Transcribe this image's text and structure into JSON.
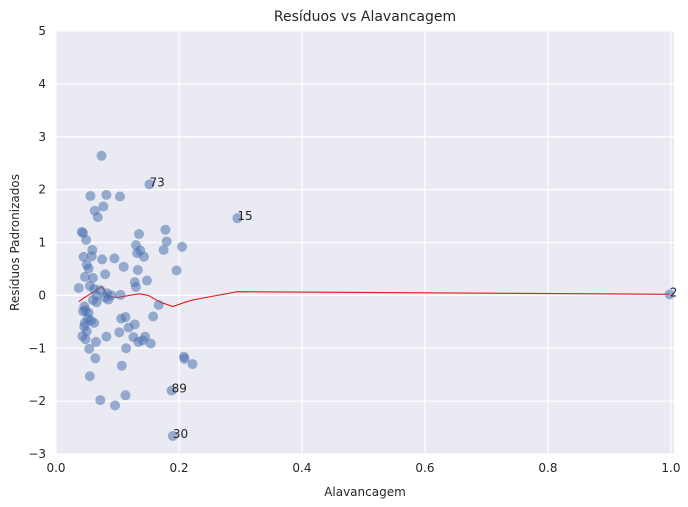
{
  "chart_data": {
    "type": "scatter",
    "title": "Resíduos vs Alavancagem",
    "xlabel": "Alavancagem",
    "ylabel": "Resíduos Padronizados",
    "xlim": [
      0.0,
      1.005
    ],
    "ylim": [
      -3,
      5
    ],
    "xticks": [
      0.0,
      0.2,
      0.4,
      0.6,
      0.8,
      1.0
    ],
    "xtick_labels": [
      "0.0",
      "0.2",
      "0.4",
      "0.6",
      "0.8",
      "1.0"
    ],
    "yticks": [
      -3,
      -2,
      -1,
      0,
      1,
      2,
      3,
      4,
      5
    ],
    "ytick_labels": [
      "−3",
      "−2",
      "−1",
      "0",
      "1",
      "2",
      "3",
      "4",
      "5"
    ],
    "grid": true,
    "point_color": "#4c72b0",
    "line_color": "#e41a1c",
    "points": [
      [
        0.074,
        2.64
      ],
      [
        0.056,
        1.88
      ],
      [
        0.082,
        1.9
      ],
      [
        0.104,
        1.87
      ],
      [
        0.152,
        2.1
      ],
      [
        0.063,
        1.6
      ],
      [
        0.068,
        1.48
      ],
      [
        0.077,
        1.68
      ],
      [
        0.295,
        1.46
      ],
      [
        0.042,
        1.2
      ],
      [
        0.044,
        1.18
      ],
      [
        0.049,
        1.05
      ],
      [
        0.178,
        1.24
      ],
      [
        0.135,
        1.16
      ],
      [
        0.13,
        0.95
      ],
      [
        0.059,
        0.86
      ],
      [
        0.045,
        0.73
      ],
      [
        0.058,
        0.74
      ],
      [
        0.075,
        0.68
      ],
      [
        0.095,
        0.7
      ],
      [
        0.132,
        0.8
      ],
      [
        0.137,
        0.85
      ],
      [
        0.143,
        0.73
      ],
      [
        0.175,
        0.86
      ],
      [
        0.18,
        1.02
      ],
      [
        0.205,
        0.92
      ],
      [
        0.05,
        0.58
      ],
      [
        0.053,
        0.51
      ],
      [
        0.11,
        0.54
      ],
      [
        0.133,
        0.48
      ],
      [
        0.196,
        0.47
      ],
      [
        0.047,
        0.35
      ],
      [
        0.08,
        0.4
      ],
      [
        0.06,
        0.33
      ],
      [
        0.055,
        0.18
      ],
      [
        0.062,
        0.12
      ],
      [
        0.13,
        0.16
      ],
      [
        0.128,
        0.25
      ],
      [
        0.148,
        0.28
      ],
      [
        0.037,
        0.14
      ],
      [
        0.072,
        0.1
      ],
      [
        0.083,
        0.04
      ],
      [
        0.09,
        0.0
      ],
      [
        0.105,
        0.01
      ],
      [
        0.066,
        0.0
      ],
      [
        0.06,
        -0.09
      ],
      [
        0.085,
        -0.08
      ],
      [
        0.08,
        -0.04
      ],
      [
        0.066,
        -0.13
      ],
      [
        0.046,
        -0.21
      ],
      [
        0.048,
        -0.28
      ],
      [
        0.053,
        -0.33
      ],
      [
        0.044,
        -0.3
      ],
      [
        0.167,
        -0.18
      ],
      [
        0.057,
        -0.48
      ],
      [
        0.047,
        -0.52
      ],
      [
        0.062,
        -0.52
      ],
      [
        0.052,
        -0.44
      ],
      [
        0.106,
        -0.44
      ],
      [
        0.113,
        -0.41
      ],
      [
        0.128,
        -0.55
      ],
      [
        0.118,
        -0.61
      ],
      [
        0.046,
        -0.59
      ],
      [
        0.158,
        -0.4
      ],
      [
        0.05,
        -0.68
      ],
      [
        0.103,
        -0.7
      ],
      [
        0.082,
        -0.78
      ],
      [
        0.043,
        -0.77
      ],
      [
        0.048,
        -0.83
      ],
      [
        0.126,
        -0.79
      ],
      [
        0.145,
        -0.78
      ],
      [
        0.134,
        -0.88
      ],
      [
        0.141,
        -0.85
      ],
      [
        0.154,
        -0.91
      ],
      [
        0.065,
        -0.88
      ],
      [
        0.114,
        -1.0
      ],
      [
        0.054,
        -1.01
      ],
      [
        0.064,
        -1.19
      ],
      [
        0.208,
        -1.16
      ],
      [
        0.209,
        -1.2
      ],
      [
        0.222,
        -1.3
      ],
      [
        0.107,
        -1.33
      ],
      [
        0.055,
        -1.53
      ],
      [
        0.113,
        -1.89
      ],
      [
        0.072,
        -1.98
      ],
      [
        0.096,
        -2.08
      ],
      [
        0.188,
        -1.8
      ],
      [
        0.19,
        -2.66
      ],
      [
        0.998,
        0.02
      ]
    ],
    "lowess": [
      [
        0.037,
        -0.12
      ],
      [
        0.045,
        -0.05
      ],
      [
        0.055,
        0.02
      ],
      [
        0.065,
        0.1
      ],
      [
        0.075,
        0.16
      ],
      [
        0.085,
        -0.02
      ],
      [
        0.1,
        -0.04
      ],
      [
        0.115,
        -0.01
      ],
      [
        0.135,
        0.03
      ],
      [
        0.15,
        0.0
      ],
      [
        0.17,
        -0.13
      ],
      [
        0.19,
        -0.21
      ],
      [
        0.21,
        -0.13
      ],
      [
        0.225,
        -0.08
      ],
      [
        0.295,
        0.07
      ],
      [
        0.998,
        0.02
      ]
    ],
    "annotations": [
      {
        "text": "73",
        "x": 0.152,
        "y": 2.1
      },
      {
        "text": "15",
        "x": 0.295,
        "y": 1.46
      },
      {
        "text": "89",
        "x": 0.188,
        "y": -1.8
      },
      {
        "text": "30",
        "x": 0.19,
        "y": -2.66
      },
      {
        "text": "2",
        "x": 0.998,
        "y": 0.02
      }
    ]
  }
}
